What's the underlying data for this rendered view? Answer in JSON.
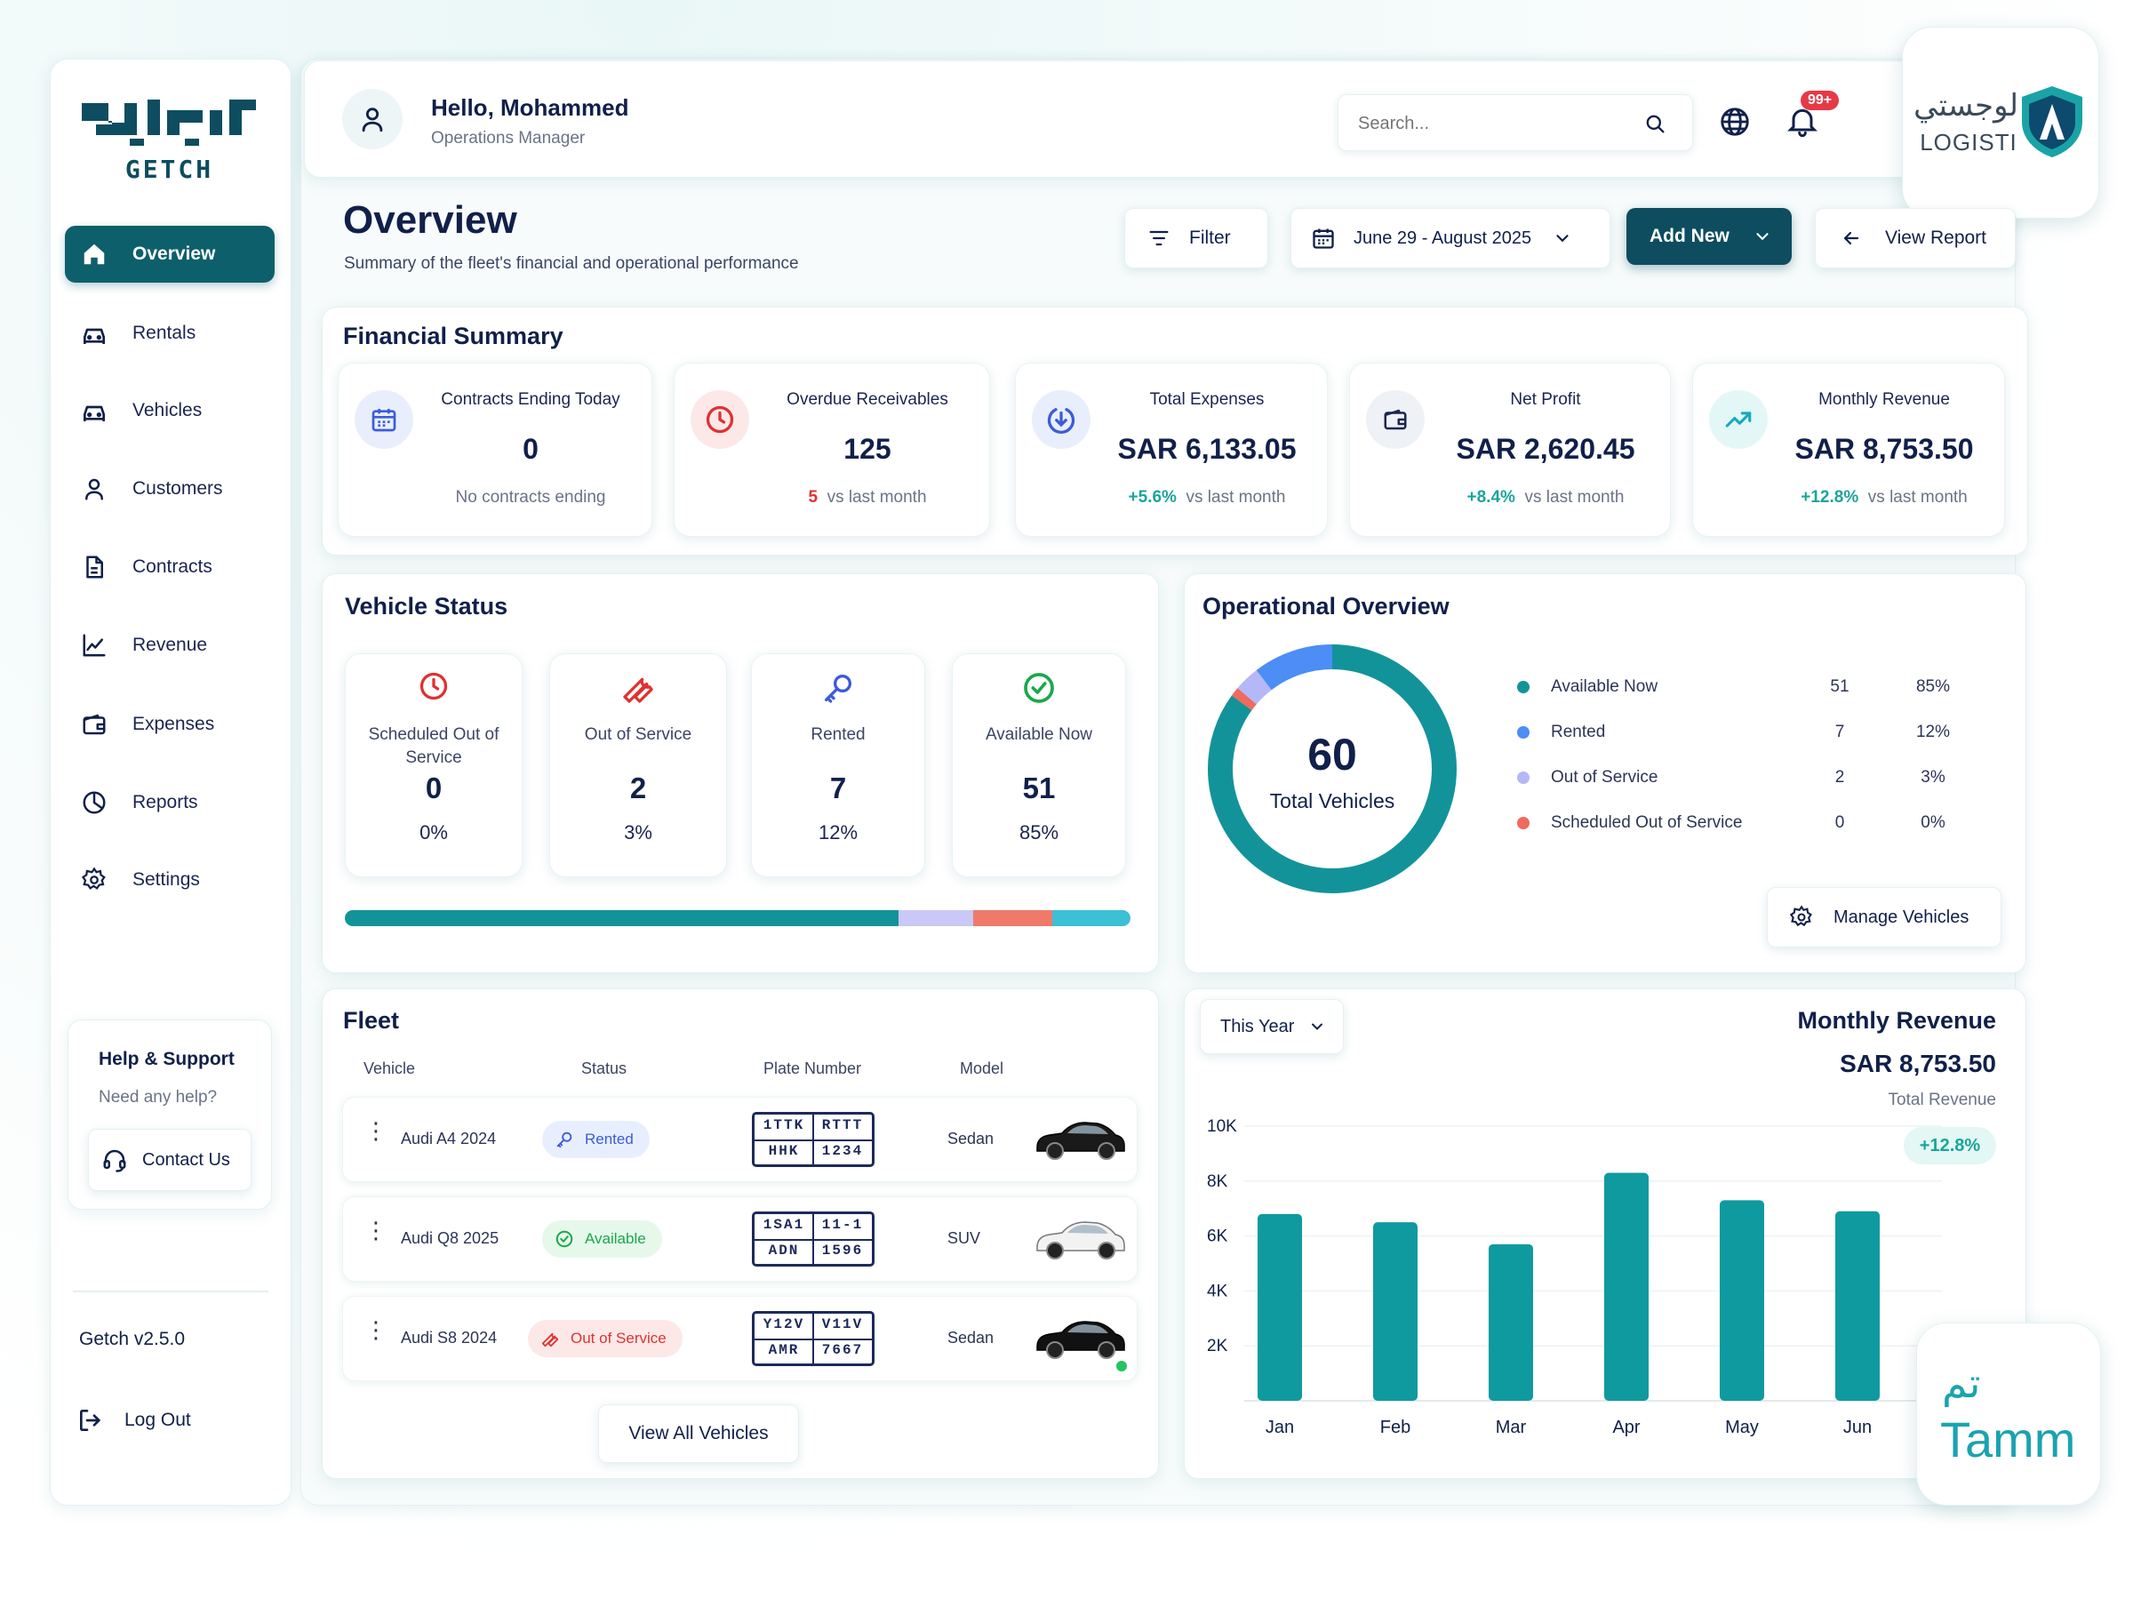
{
  "brand": {
    "name": "GETCH",
    "version": "Getch v2.5.0"
  },
  "sidebar": {
    "items": [
      {
        "label": "Overview",
        "icon": "home-icon",
        "active": true
      },
      {
        "label": "Rentals",
        "icon": "car-icon"
      },
      {
        "label": "Vehicles",
        "icon": "car-icon"
      },
      {
        "label": "Customers",
        "icon": "user-icon"
      },
      {
        "label": "Contracts",
        "icon": "document-icon"
      },
      {
        "label": "Revenue",
        "icon": "line-chart-icon"
      },
      {
        "label": "Expenses",
        "icon": "wallet-icon"
      },
      {
        "label": "Reports",
        "icon": "pie-chart-icon"
      },
      {
        "label": "Settings",
        "icon": "gear-icon"
      }
    ],
    "help": {
      "title": "Help & Support",
      "subtitle": "Need any help?",
      "contact_label": "Contact Us"
    },
    "logout_label": "Log Out"
  },
  "header": {
    "greeting": "Hello, Mohammed",
    "role": "Operations Manager",
    "search_placeholder": "Search...",
    "notification_badge": "99+"
  },
  "partners": {
    "logisti": {
      "arabic": "لوجستي",
      "latin": "LOGISTI"
    },
    "tamm": {
      "arabic": "تم",
      "latin": "Tamm"
    }
  },
  "page": {
    "title": "Overview",
    "subtitle": "Summary of the fleet's financial and operational performance",
    "filter_label": "Filter",
    "date_range": "June 29 - August 2025",
    "add_new_label": "Add New",
    "view_report_label": "View Report"
  },
  "financial": {
    "title": "Financial Summary",
    "cards": [
      {
        "label": "Contracts Ending Today",
        "value": "0",
        "note": "No contracts ending",
        "icon": "calendar-icon",
        "color": "#3b5bdb"
      },
      {
        "label": "Overdue Receivables",
        "value": "125",
        "delta": "5",
        "note": "vs last month",
        "icon": "clock-icon",
        "color": "#e03131"
      },
      {
        "label": "Total Expenses",
        "value": "SAR 6,133.05",
        "delta": "+5.6%",
        "note": "vs last month",
        "icon": "download-circle-icon",
        "color": "#3b5bdb"
      },
      {
        "label": "Net Profit",
        "value": "SAR 2,620.45",
        "delta": "+8.4%",
        "note": "vs last month",
        "icon": "wallet-icon",
        "color": "#1b2550"
      },
      {
        "label": "Monthly Revenue",
        "value": "SAR 8,753.50",
        "delta": "+12.8%",
        "note": "vs last month",
        "icon": "trend-up-icon",
        "color": "#15aabf"
      }
    ]
  },
  "vehicle_status": {
    "title": "Vehicle Status",
    "cards": [
      {
        "label": "Scheduled Out of Service",
        "value": "0",
        "pct": "0%"
      },
      {
        "label": "Out of Service",
        "value": "2",
        "pct": "3%"
      },
      {
        "label": "Rented",
        "value": "7",
        "pct": "12%"
      },
      {
        "label": "Available Now",
        "value": "51",
        "pct": "85%"
      }
    ]
  },
  "operational": {
    "title": "Operational Overview",
    "total": "60",
    "total_label": "Total Vehicles",
    "legend": [
      {
        "name": "Available Now",
        "value": "51",
        "pct": "85%",
        "color": "#12939a"
      },
      {
        "name": "Rented",
        "value": "7",
        "pct": "12%",
        "color": "#4c8df6"
      },
      {
        "name": "Out of Service",
        "value": "2",
        "pct": "3%",
        "color": "#b4b8f7"
      },
      {
        "name": "Scheduled Out of Service",
        "value": "0",
        "pct": "0%",
        "color": "#f06a5e"
      }
    ],
    "manage_label": "Manage Vehicles"
  },
  "fleet": {
    "title": "Fleet",
    "columns": [
      "Vehicle",
      "Status",
      "Plate Number",
      "Model"
    ],
    "rows": [
      {
        "vehicle": "Audi A4 2024",
        "status": "Rented",
        "plate": [
          "1TTK",
          "RTTT",
          "HHK",
          "1234"
        ],
        "model": "Sedan"
      },
      {
        "vehicle": "Audi Q8 2025",
        "status": "Available",
        "plate": [
          "1SA1",
          "11-1",
          "ADN",
          "1596"
        ],
        "model": "SUV"
      },
      {
        "vehicle": "Audi S8 2024",
        "status": "Out of Service",
        "plate": [
          "Y12V",
          "V11V",
          "AMR",
          "7667"
        ],
        "model": "Sedan"
      }
    ],
    "view_all_label": "View All Vehicles"
  },
  "revenue": {
    "period": "This Year",
    "title": "Monthly Revenue",
    "amount": "SAR 8,753.50",
    "amount_label": "Total Revenue",
    "delta": "+12.8%"
  },
  "chart_data": {
    "type": "bar",
    "categories": [
      "Jan",
      "Feb",
      "Mar",
      "Apr",
      "May",
      "Jun"
    ],
    "values": [
      6800,
      6500,
      5700,
      8300,
      7300,
      6900
    ],
    "yticks": [
      "10K",
      "8K",
      "6K",
      "4K",
      "2K"
    ],
    "ylim": [
      0,
      10000
    ],
    "color": "#0f9aa0"
  }
}
